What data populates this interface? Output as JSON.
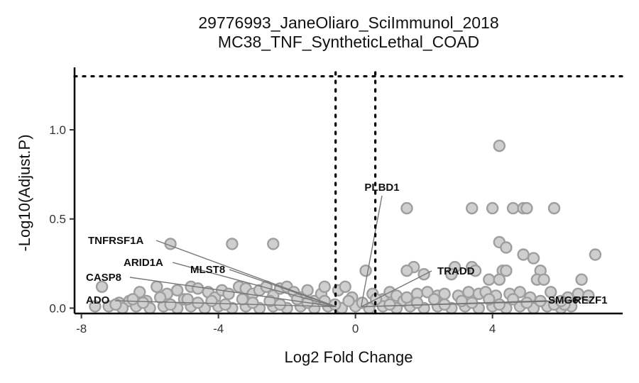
{
  "chart_data": {
    "type": "scatter",
    "title": "29776993_JaneOliaro_SciImmunol_2018",
    "subtitle": "MC38_TNF_SyntheticLethal_COAD",
    "xlabel": "Log2 Fold Change",
    "ylabel": "-Log10(Adjust.P)",
    "xlim": [
      -8.2,
      7.8
    ],
    "ylim": [
      -0.03,
      1.35
    ],
    "x_ticks": [
      -8,
      -4,
      0,
      4
    ],
    "x_tick_labels": [
      "-8",
      "-4",
      "0",
      "4"
    ],
    "y_ticks": [
      0,
      0.5,
      1
    ],
    "y_tick_labels": [
      "0.0",
      "0.5",
      "1.0"
    ],
    "grid": false,
    "thresholds": {
      "x": [
        -0.58,
        0.58
      ],
      "y": 1.3
    },
    "labeled_points": [
      {
        "gene": "TNFRSF1A",
        "x": -5.4,
        "y": 0.36
      },
      {
        "gene": "ARID1A",
        "x": -5.1,
        "y": 0.11
      },
      {
        "gene": "MLST8",
        "x": -3.5,
        "y": 0.12
      },
      {
        "gene": "CASP8",
        "x": -7.4,
        "y": 0.12
      },
      {
        "gene": "ADO",
        "x": -7.2,
        "y": 0.01
      },
      {
        "gene": "PLBD1",
        "x": 0.3,
        "y": 0.21
      },
      {
        "gene": "TRADD",
        "x": 2.2,
        "y": 0.23
      },
      {
        "gene": "SMG6",
        "x": 5.6,
        "y": 0.03
      },
      {
        "gene": "REZF1",
        "x": 6.4,
        "y": 0.02
      }
    ],
    "points": [
      [
        4.2,
        0.91
      ],
      [
        1.5,
        0.56
      ],
      [
        3.4,
        0.56
      ],
      [
        4.0,
        0.56
      ],
      [
        4.6,
        0.56
      ],
      [
        4.9,
        0.56
      ],
      [
        5.0,
        0.56
      ],
      [
        5.8,
        0.56
      ],
      [
        4.2,
        0.37
      ],
      [
        4.4,
        0.34
      ],
      [
        4.9,
        0.3
      ],
      [
        5.2,
        0.28
      ],
      [
        7.0,
        0.3
      ],
      [
        5.4,
        0.21
      ],
      [
        6.6,
        0.16
      ],
      [
        4.3,
        0.21
      ],
      [
        4.4,
        0.21
      ],
      [
        2.9,
        0.23
      ],
      [
        3.4,
        0.23
      ],
      [
        3.5,
        0.21
      ],
      [
        1.7,
        0.23
      ],
      [
        1.5,
        0.21
      ],
      [
        2.8,
        0.19
      ],
      [
        2.0,
        0.19
      ],
      [
        3.9,
        0.16
      ],
      [
        4.2,
        0.16
      ],
      [
        5.3,
        0.16
      ],
      [
        5.5,
        0.16
      ],
      [
        -5.4,
        0.36
      ],
      [
        -3.6,
        0.36
      ],
      [
        -2.4,
        0.36
      ],
      [
        -7.4,
        0.12
      ],
      [
        -6.9,
        0.03
      ],
      [
        -6.6,
        0.04
      ],
      [
        -6.3,
        0.09
      ],
      [
        -6.1,
        0.04
      ],
      [
        -5.8,
        0.12
      ],
      [
        -5.5,
        0.08
      ],
      [
        -5.2,
        0.1
      ],
      [
        -5.0,
        0.05
      ],
      [
        -4.8,
        0.12
      ],
      [
        -4.6,
        0.11
      ],
      [
        -4.3,
        0.09
      ],
      [
        -4.1,
        0.06
      ],
      [
        -3.9,
        0.1
      ],
      [
        -3.7,
        0.08
      ],
      [
        -3.4,
        0.12
      ],
      [
        -3.2,
        0.11
      ],
      [
        -3.0,
        0.08
      ],
      [
        -2.8,
        0.1
      ],
      [
        -2.6,
        0.12
      ],
      [
        -2.4,
        0.07
      ],
      [
        -2.2,
        0.11
      ],
      [
        -2.0,
        0.12
      ],
      [
        -1.8,
        0.09
      ],
      [
        -1.6,
        0.06
      ],
      [
        -1.4,
        0.1
      ],
      [
        -1.2,
        0.04
      ],
      [
        -1.0,
        0.08
      ],
      [
        -0.9,
        0.12
      ],
      [
        -0.5,
        0.1
      ],
      [
        -0.3,
        0.12
      ],
      [
        -0.1,
        0.06
      ],
      [
        0.3,
        0.21
      ],
      [
        0.5,
        0.08
      ],
      [
        0.8,
        0.05
      ],
      [
        1.0,
        0.09
      ],
      [
        1.2,
        0.07
      ],
      [
        1.4,
        0.04
      ],
      [
        1.8,
        0.08
      ],
      [
        2.1,
        0.09
      ],
      [
        2.4,
        0.07
      ],
      [
        2.6,
        0.08
      ],
      [
        3.0,
        0.07
      ],
      [
        3.3,
        0.09
      ],
      [
        3.6,
        0.08
      ],
      [
        3.8,
        0.09
      ],
      [
        4.1,
        0.07
      ],
      [
        4.5,
        0.08
      ],
      [
        4.8,
        0.09
      ],
      [
        5.1,
        0.06
      ],
      [
        5.7,
        0.09
      ],
      [
        6.2,
        0.06
      ],
      [
        6.5,
        0.08
      ],
      [
        6.8,
        0.07
      ],
      [
        -7.6,
        0.01
      ],
      [
        -7.2,
        0.01
      ],
      [
        -6.8,
        0.0
      ],
      [
        -6.4,
        0.01
      ],
      [
        -6.0,
        0.0
      ],
      [
        -5.6,
        0.01
      ],
      [
        -5.2,
        0.0
      ],
      [
        -4.8,
        0.01
      ],
      [
        -4.4,
        0.0
      ],
      [
        -4.0,
        0.01
      ],
      [
        -3.6,
        0.0
      ],
      [
        -3.2,
        0.01
      ],
      [
        -2.8,
        0.0
      ],
      [
        -2.4,
        0.01
      ],
      [
        -2.0,
        0.0
      ],
      [
        -1.6,
        0.01
      ],
      [
        -1.2,
        0.0
      ],
      [
        -0.8,
        0.01
      ],
      [
        -0.4,
        0.0
      ],
      [
        0.0,
        0.01
      ],
      [
        0.4,
        0.0
      ],
      [
        0.8,
        0.01
      ],
      [
        1.2,
        0.0
      ],
      [
        1.6,
        0.01
      ],
      [
        2.0,
        0.0
      ],
      [
        2.4,
        0.01
      ],
      [
        2.8,
        0.0
      ],
      [
        3.2,
        0.01
      ],
      [
        3.6,
        0.0
      ],
      [
        4.0,
        0.01
      ],
      [
        4.4,
        0.0
      ],
      [
        4.8,
        0.01
      ],
      [
        5.2,
        0.0
      ],
      [
        5.6,
        0.01
      ],
      [
        6.0,
        0.0
      ],
      [
        6.3,
        0.01
      ],
      [
        -7.0,
        0.02
      ],
      [
        -6.2,
        0.03
      ],
      [
        -5.4,
        0.02
      ],
      [
        -4.6,
        0.03
      ],
      [
        -3.8,
        0.02
      ],
      [
        -3.0,
        0.03
      ],
      [
        -2.2,
        0.02
      ],
      [
        -1.4,
        0.03
      ],
      [
        -0.6,
        0.02
      ],
      [
        0.2,
        0.03
      ],
      [
        1.0,
        0.02
      ],
      [
        1.8,
        0.03
      ],
      [
        2.6,
        0.02
      ],
      [
        3.4,
        0.03
      ],
      [
        4.2,
        0.02
      ],
      [
        5.0,
        0.03
      ],
      [
        5.8,
        0.02
      ],
      [
        6.1,
        0.02
      ],
      [
        -6.5,
        0.05
      ],
      [
        -5.7,
        0.06
      ],
      [
        -4.9,
        0.05
      ],
      [
        -4.2,
        0.04
      ],
      [
        -3.3,
        0.05
      ],
      [
        -2.5,
        0.04
      ],
      [
        -1.7,
        0.05
      ],
      [
        -0.9,
        0.04
      ],
      [
        -0.2,
        0.04
      ],
      [
        0.6,
        0.05
      ],
      [
        1.5,
        0.06
      ],
      [
        2.3,
        0.05
      ],
      [
        3.1,
        0.04
      ],
      [
        3.9,
        0.05
      ],
      [
        4.6,
        0.05
      ],
      [
        5.4,
        0.04
      ],
      [
        6.0,
        0.04
      ]
    ]
  }
}
